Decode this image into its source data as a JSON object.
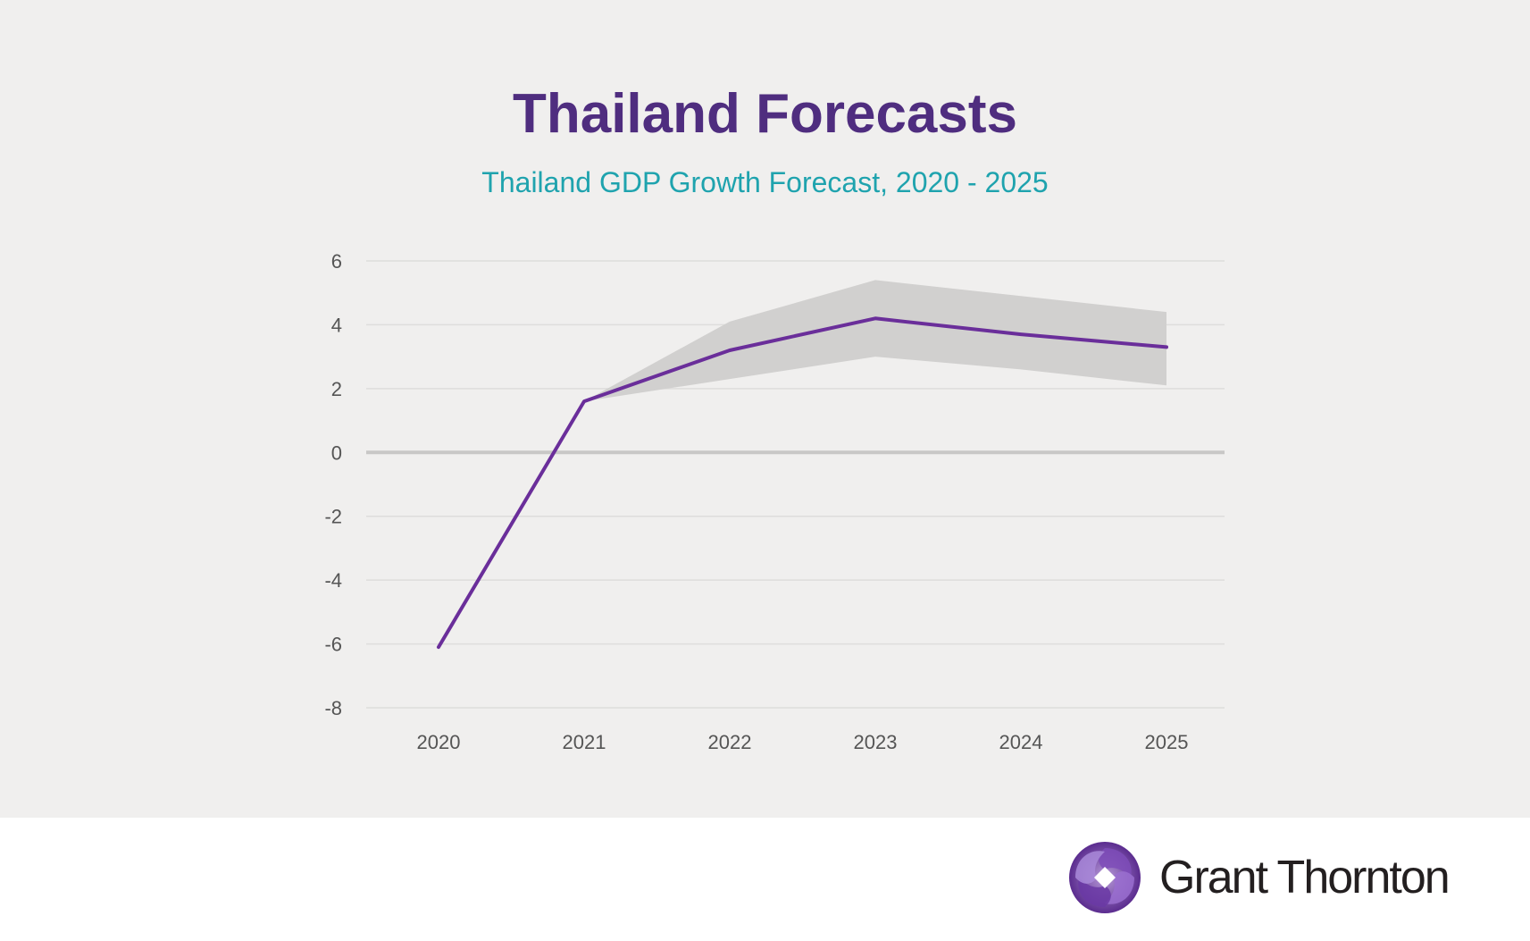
{
  "chart_data": {
    "type": "line",
    "title": "Thailand Forecasts",
    "subtitle": "Thailand GDP Growth Forecast, 2020 - 2025",
    "xlabel": "",
    "ylabel": "",
    "categories": [
      "2020",
      "2021",
      "2022",
      "2023",
      "2024",
      "2025"
    ],
    "series": [
      {
        "values": [
          -6.1,
          1.6,
          3.2,
          4.2,
          3.7,
          3.3
        ]
      }
    ],
    "band": {
      "start_index": 1,
      "upper": [
        1.6,
        4.1,
        5.4,
        4.9,
        4.4
      ],
      "lower": [
        1.6,
        2.3,
        3.0,
        2.6,
        2.1
      ]
    },
    "ylim": [
      -8,
      6
    ],
    "yticks": [
      "6",
      "4",
      "2",
      "0",
      "-2",
      "-4",
      "-6",
      "-8"
    ],
    "ytick_values": [
      6,
      4,
      2,
      0,
      -2,
      -4,
      -6,
      -8
    ],
    "grid": true,
    "legend": "none",
    "colors": {
      "line": "#6a2e9a",
      "band": "#d1d0cf",
      "grid": "#dedddc",
      "zero_line": "#c8c7c6",
      "title": "#4f2d7f",
      "subtitle": "#1fa3ae",
      "panel_background": "#f0efee"
    }
  },
  "brand": {
    "logo_text": "Grant Thornton",
    "logo_icon": "grant-thornton-swirl-icon",
    "logo_color": "#6b3fa0"
  }
}
